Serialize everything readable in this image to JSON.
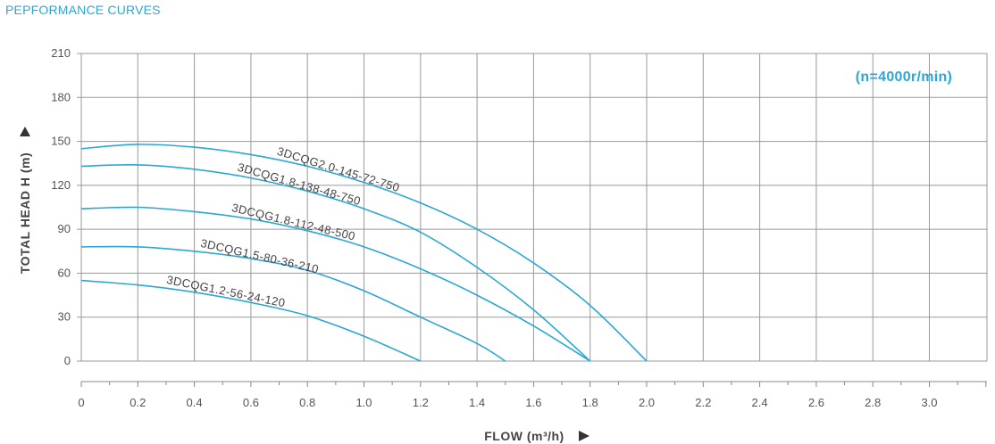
{
  "page": {
    "title": "PEPFORMANCE CURVES"
  },
  "colors": {
    "accent": "#2aa7d6",
    "curve": "#2aa7d6",
    "grid": "#999999",
    "text": "#444444"
  },
  "chart_data": {
    "type": "line",
    "xlabel": "FLOW (m³/h)",
    "ylabel": "TOTAL HEAD H (m)",
    "annotation": "(n=4000r/min)",
    "xlim": [
      0,
      3.2
    ],
    "ylim": [
      0,
      210
    ],
    "xticks": [
      0,
      0.2,
      0.4,
      0.6,
      0.8,
      1.0,
      1.2,
      1.4,
      1.6,
      1.8,
      2.0,
      2.2,
      2.4,
      2.6,
      2.8,
      3.0
    ],
    "xtick_labels": [
      "0",
      "0.2",
      "0.4",
      "0.6",
      "0.8",
      "1.0",
      "1.2",
      "1.4",
      "1.6",
      "1.8",
      "2.0",
      "2.2",
      "2.4",
      "2.6",
      "2.8",
      "3.0"
    ],
    "yticks": [
      0,
      30,
      60,
      90,
      120,
      150,
      180,
      210
    ],
    "ytick_labels": [
      "0",
      "30",
      "60",
      "90",
      "120",
      "150",
      "180",
      "210"
    ],
    "grid": true,
    "series": [
      {
        "name": "3DCQG2.0-145-72-750",
        "x": [
          0,
          0.2,
          0.4,
          0.6,
          0.8,
          1.0,
          1.2,
          1.4,
          1.6,
          1.8,
          2.0
        ],
        "y": [
          145,
          148,
          146,
          141,
          133,
          122,
          108,
          90,
          67,
          38,
          0
        ]
      },
      {
        "name": "3DCQG1.8-138-48-750",
        "x": [
          0,
          0.2,
          0.4,
          0.6,
          0.8,
          1.0,
          1.2,
          1.4,
          1.6,
          1.8
        ],
        "y": [
          133,
          134,
          131,
          125,
          116,
          104,
          88,
          64,
          35,
          0
        ]
      },
      {
        "name": "3DCQG1.8-112-48-500",
        "x": [
          0,
          0.2,
          0.4,
          0.6,
          0.8,
          1.0,
          1.2,
          1.4,
          1.6,
          1.8
        ],
        "y": [
          104,
          105,
          102,
          97,
          89,
          78,
          63,
          45,
          24,
          0
        ]
      },
      {
        "name": "3DCQG1.5-80-36-210",
        "x": [
          0,
          0.2,
          0.4,
          0.6,
          0.8,
          1.0,
          1.2,
          1.4,
          1.5
        ],
        "y": [
          78,
          78,
          75,
          70,
          62,
          48,
          30,
          12,
          0
        ]
      },
      {
        "name": "3DCQG1.2-56-24-120",
        "x": [
          0,
          0.2,
          0.4,
          0.6,
          0.8,
          1.0,
          1.2
        ],
        "y": [
          55,
          52,
          47,
          40,
          31,
          17,
          0
        ]
      }
    ]
  }
}
